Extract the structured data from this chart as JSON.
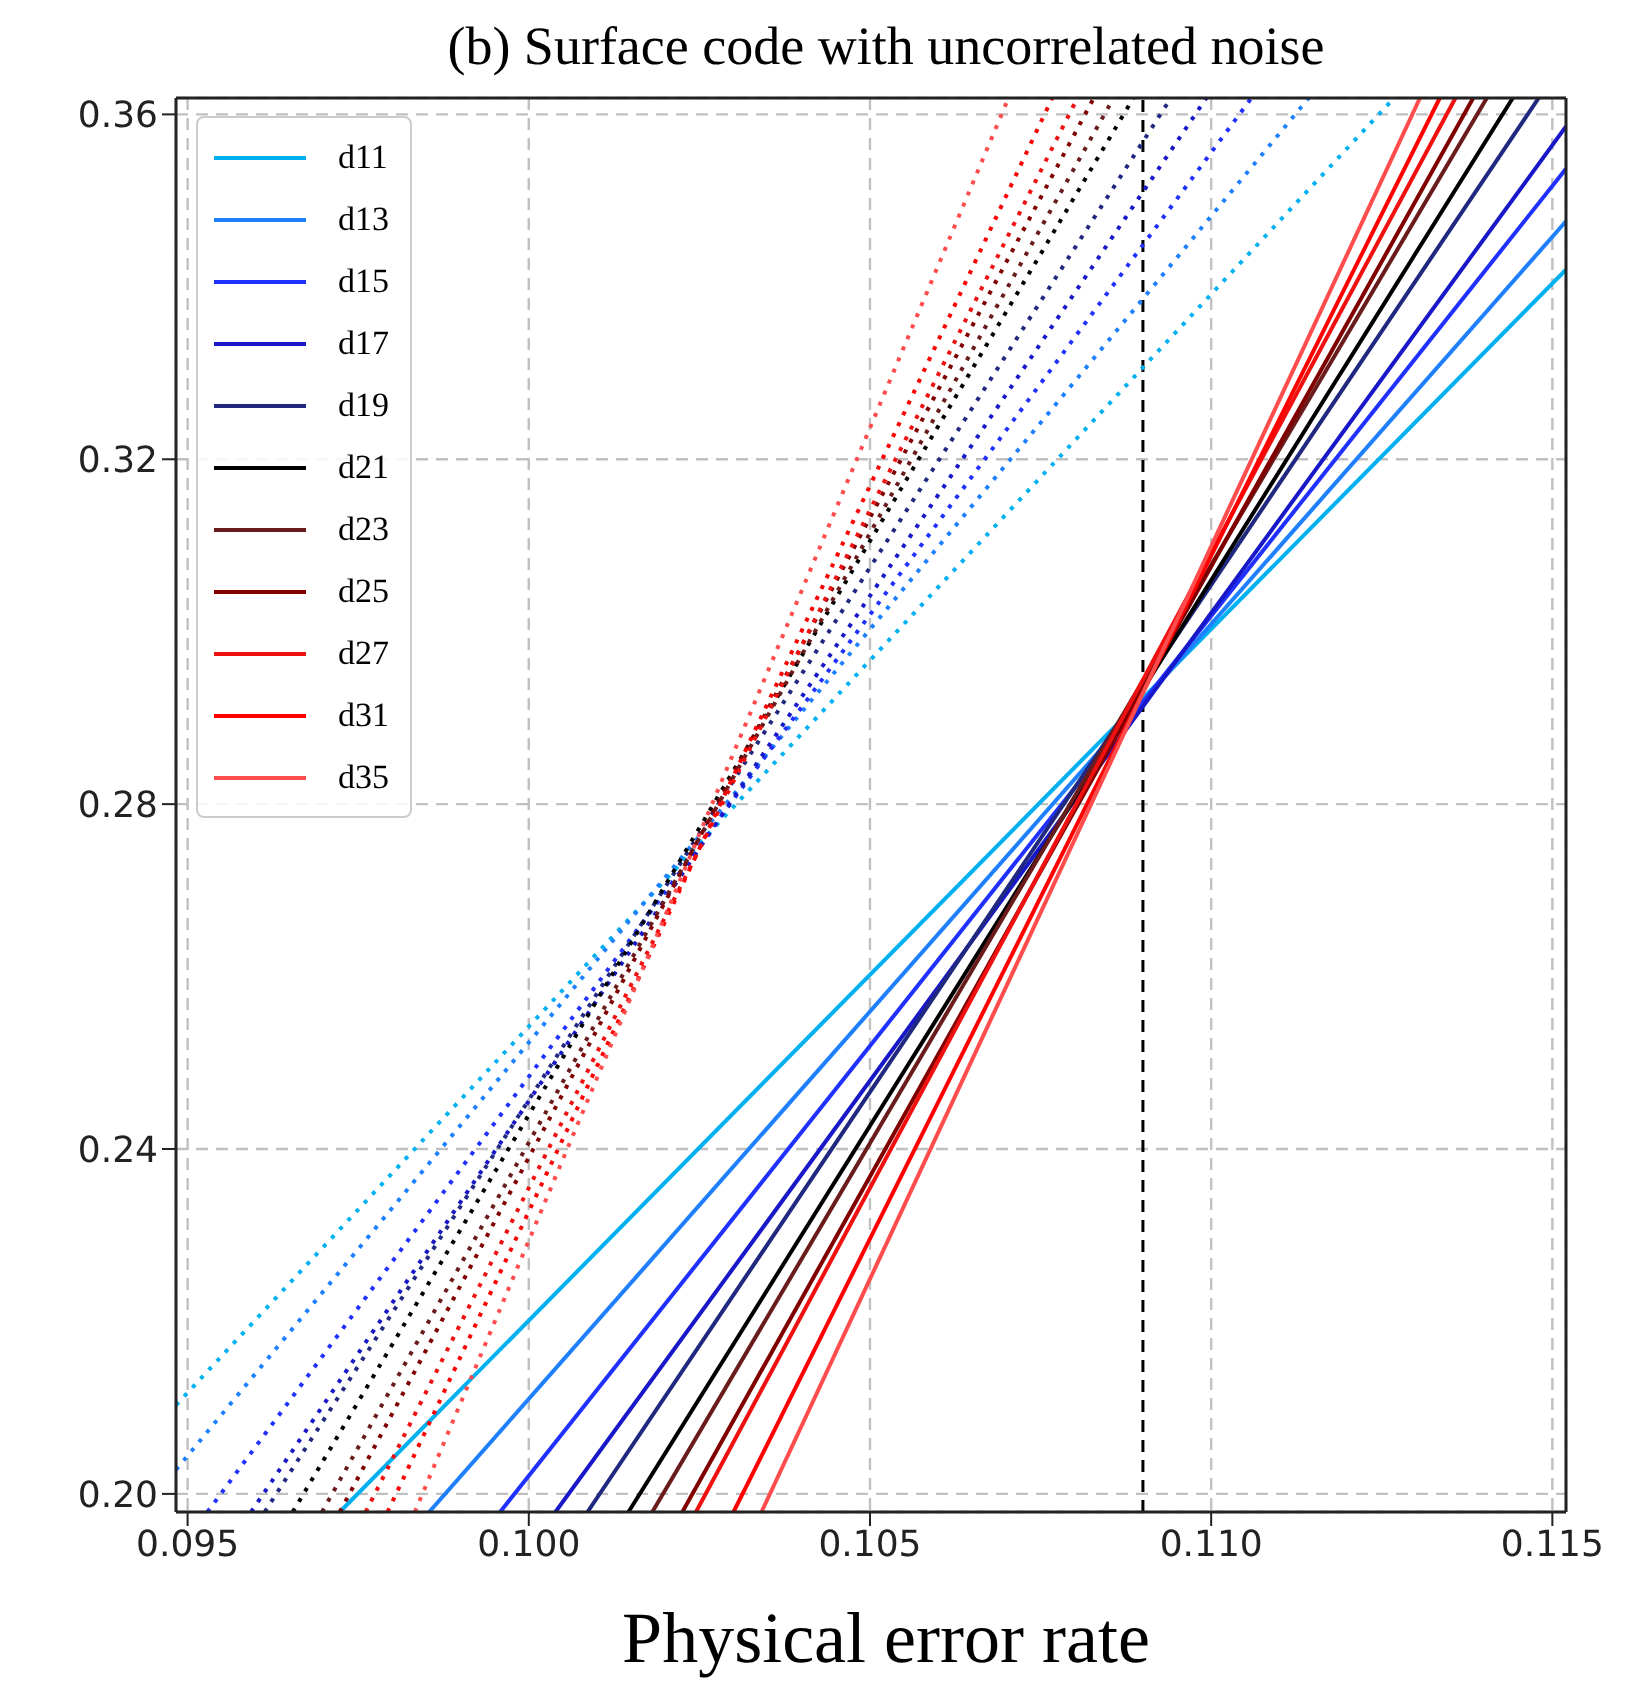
{
  "chart_data": {
    "type": "line",
    "title": "(b) Surface code with uncorrelated noise",
    "xlabel": "Physical error rate",
    "xlim": [
      0.09483,
      0.1152
    ],
    "ylim": [
      0.1979,
      0.3619
    ],
    "xticks": [
      0.095,
      {
        "value": 0.1,
        "label": "0.100"
      },
      0.105,
      {
        "value": 0.11,
        "label": "0.110"
      },
      0.115
    ],
    "yticks": [
      {
        "value": 0.2,
        "label": "0.20"
      },
      0.24,
      0.28,
      0.32,
      0.36
    ],
    "grid": true,
    "legend": "top left",
    "marker": "none",
    "ref_lines": [
      {
        "axis": "x",
        "value": 0.109,
        "color": "#000000",
        "line_style": "dashed"
      }
    ],
    "series": [
      {
        "name": "d11",
        "color": "#00b0f0",
        "line_style": "solid",
        "x": [
          0.09723,
          0.1152
        ],
        "values": [
          0.1979,
          0.342
        ]
      },
      {
        "name": "d13",
        "color": "#1e80ff",
        "line_style": "solid",
        "x": [
          0.09854,
          0.1152
        ],
        "values": [
          0.1979,
          0.3476
        ]
      },
      {
        "name": "d15",
        "color": "#2030ff",
        "line_style": "solid",
        "x": [
          0.09958,
          0.1152
        ],
        "values": [
          0.1979,
          0.3537
        ]
      },
      {
        "name": "d17",
        "color": "#1818c8",
        "line_style": "solid",
        "x": [
          0.10039,
          0.1152
        ],
        "values": [
          0.1979,
          0.3586
        ]
      },
      {
        "name": "d19",
        "color": "#202880",
        "line_style": "solid",
        "x": [
          0.10086,
          0.1148
        ],
        "values": [
          0.1979,
          0.3619
        ]
      },
      {
        "name": "d21",
        "color": "#000000",
        "line_style": "solid",
        "x": [
          0.10146,
          0.11442
        ],
        "values": [
          0.1979,
          0.3619
        ]
      },
      {
        "name": "d23",
        "color": "#6a1c1c",
        "line_style": "solid",
        "x": [
          0.10181,
          0.11404
        ],
        "values": [
          0.1979,
          0.3619
        ]
      },
      {
        "name": "d25",
        "color": "#800000",
        "line_style": "solid",
        "x": [
          0.10225,
          0.11384
        ],
        "values": [
          0.1979,
          0.3619
        ]
      },
      {
        "name": "d27",
        "color": "#f01010",
        "line_style": "solid",
        "x": [
          0.10245,
          0.11358
        ],
        "values": [
          0.1979,
          0.3619
        ]
      },
      {
        "name": "d31",
        "color": "#ff0000",
        "line_style": "solid",
        "x": [
          0.103,
          0.11335
        ],
        "values": [
          0.1979,
          0.3619
        ]
      },
      {
        "name": "d35",
        "color": "#ff4c4c",
        "line_style": "solid",
        "x": [
          0.10341,
          0.11306
        ],
        "values": [
          0.1979,
          0.3619
        ]
      },
      {
        "color": "#00b0f0",
        "line_style": "dotted",
        "x": [
          0.09483,
          0.11268
        ],
        "values": [
          0.2103,
          0.3619
        ]
      },
      {
        "color": "#1e80ff",
        "line_style": "dotted",
        "x": [
          0.09483,
          0.11143
        ],
        "values": [
          0.2028,
          0.3619
        ]
      },
      {
        "color": "#2030ff",
        "line_style": "dotted",
        "x": [
          0.09529,
          0.11059
        ],
        "values": [
          0.1979,
          0.3619
        ]
      },
      {
        "color": "#1818c8",
        "line_style": "dotted",
        "x": [
          0.09593,
          0.10993
        ],
        "values": [
          0.1979,
          0.3619
        ]
      },
      {
        "color": "#202880",
        "line_style": "dotted",
        "x": [
          0.09613,
          0.10941
        ],
        "values": [
          0.1979,
          0.3619
        ]
      },
      {
        "color": "#000000",
        "line_style": "dotted",
        "x": [
          0.09654,
          0.10886
        ],
        "values": [
          0.1979,
          0.3619
        ]
      },
      {
        "color": "#6a1c1c",
        "line_style": "dotted",
        "x": [
          0.09697,
          0.10857
        ],
        "values": [
          0.1979,
          0.3619
        ]
      },
      {
        "color": "#800000",
        "line_style": "dotted",
        "x": [
          0.09723,
          0.10828
        ],
        "values": [
          0.1979,
          0.3619
        ]
      },
      {
        "color": "#f01010",
        "line_style": "dotted",
        "x": [
          0.09761,
          0.10804
        ],
        "values": [
          0.1979,
          0.3619
        ]
      },
      {
        "color": "#ff0000",
        "line_style": "dotted",
        "x": [
          0.09793,
          0.10767
        ],
        "values": [
          0.1979,
          0.3619
        ]
      },
      {
        "color": "#ff4c4c",
        "line_style": "dotted",
        "x": [
          0.09833,
          0.10703
        ],
        "values": [
          0.1979,
          0.3619
        ]
      }
    ]
  }
}
